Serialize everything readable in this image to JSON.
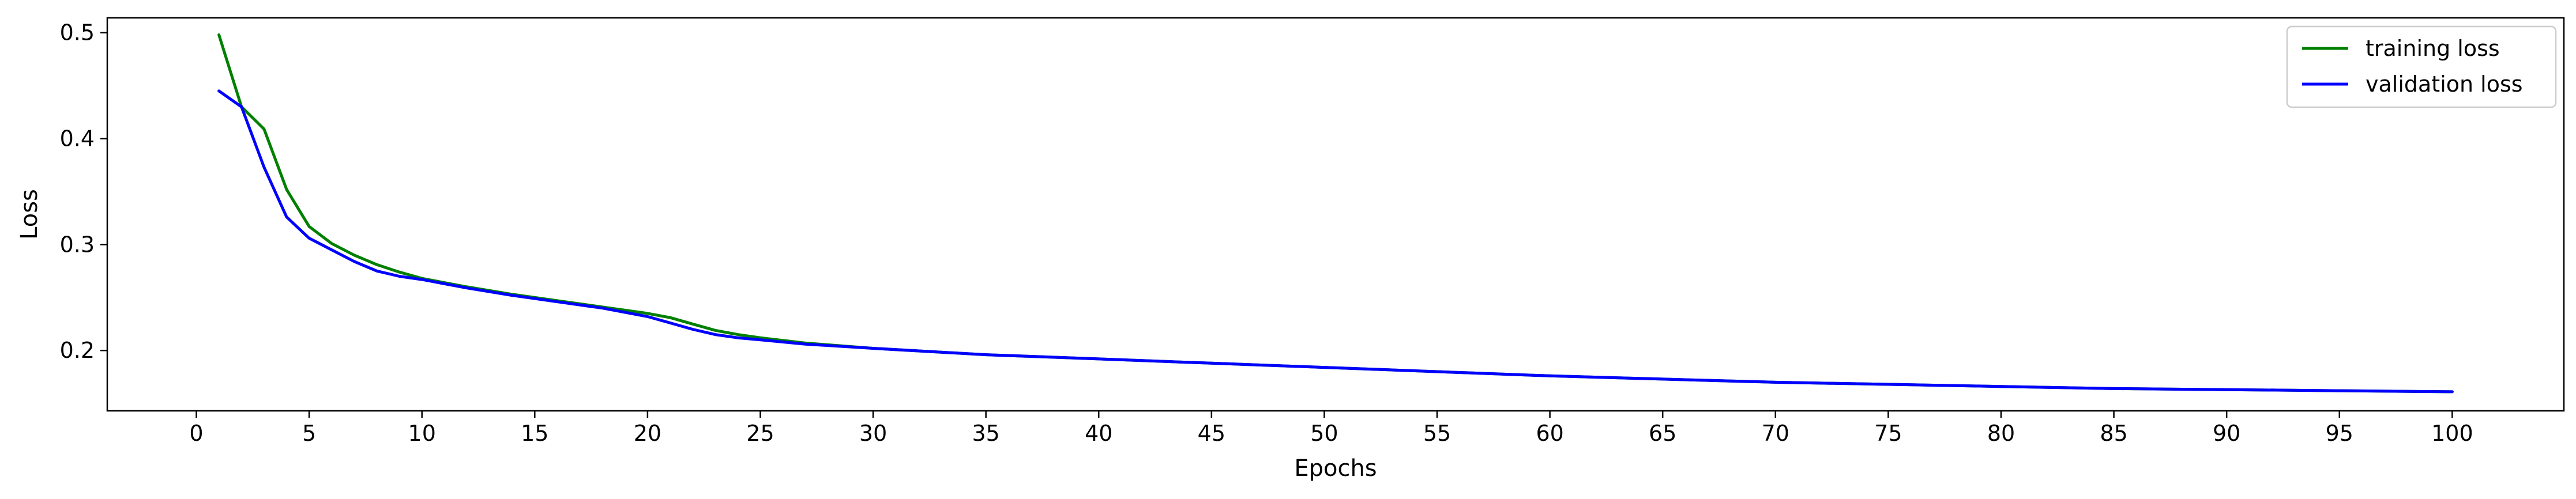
{
  "chart_data": {
    "type": "line",
    "title": "",
    "xlabel": "Epochs",
    "ylabel": "Loss",
    "xlim": [
      -3.95,
      104.95
    ],
    "ylim": [
      0.143,
      0.514
    ],
    "xticks": [
      0,
      5,
      10,
      15,
      20,
      25,
      30,
      35,
      40,
      45,
      50,
      55,
      60,
      65,
      70,
      75,
      80,
      85,
      90,
      95,
      100
    ],
    "yticks": [
      0.2,
      0.3,
      0.4,
      0.5
    ],
    "ytick_labels": [
      "0.2",
      "0.3",
      "0.4",
      "0.5"
    ],
    "grid": false,
    "legend_position": "top-right",
    "series": [
      {
        "name": "training loss",
        "color": "#008000",
        "x": [
          1,
          2,
          3,
          4,
          5,
          6,
          7,
          8,
          9,
          10,
          12,
          14,
          16,
          18,
          20,
          21,
          22,
          23,
          24,
          25,
          27,
          30,
          35,
          40,
          45,
          50,
          55,
          60,
          65,
          70,
          75,
          80,
          85,
          90,
          95,
          100
        ],
        "y": [
          0.498,
          0.43,
          0.409,
          0.352,
          0.317,
          0.301,
          0.29,
          0.281,
          0.274,
          0.268,
          0.26,
          0.253,
          0.247,
          0.241,
          0.235,
          0.231,
          0.225,
          0.219,
          0.215,
          0.212,
          0.207,
          0.202,
          0.196,
          0.192,
          0.188,
          0.184,
          0.18,
          0.176,
          0.173,
          0.17,
          0.168,
          0.166,
          0.164,
          0.163,
          0.162,
          0.161
        ]
      },
      {
        "name": "validation loss",
        "color": "#0000ff",
        "x": [
          1,
          2,
          3,
          4,
          5,
          6,
          7,
          8,
          9,
          10,
          12,
          14,
          16,
          18,
          20,
          21,
          22,
          23,
          24,
          25,
          27,
          30,
          35,
          40,
          45,
          50,
          55,
          60,
          65,
          70,
          75,
          80,
          85,
          90,
          95,
          100
        ],
        "y": [
          0.445,
          0.43,
          0.373,
          0.326,
          0.306,
          0.295,
          0.284,
          0.275,
          0.27,
          0.267,
          0.259,
          0.252,
          0.246,
          0.24,
          0.232,
          0.226,
          0.22,
          0.215,
          0.212,
          0.21,
          0.206,
          0.202,
          0.196,
          0.192,
          0.188,
          0.184,
          0.18,
          0.176,
          0.173,
          0.17,
          0.168,
          0.166,
          0.164,
          0.163,
          0.162,
          0.161
        ]
      }
    ]
  }
}
